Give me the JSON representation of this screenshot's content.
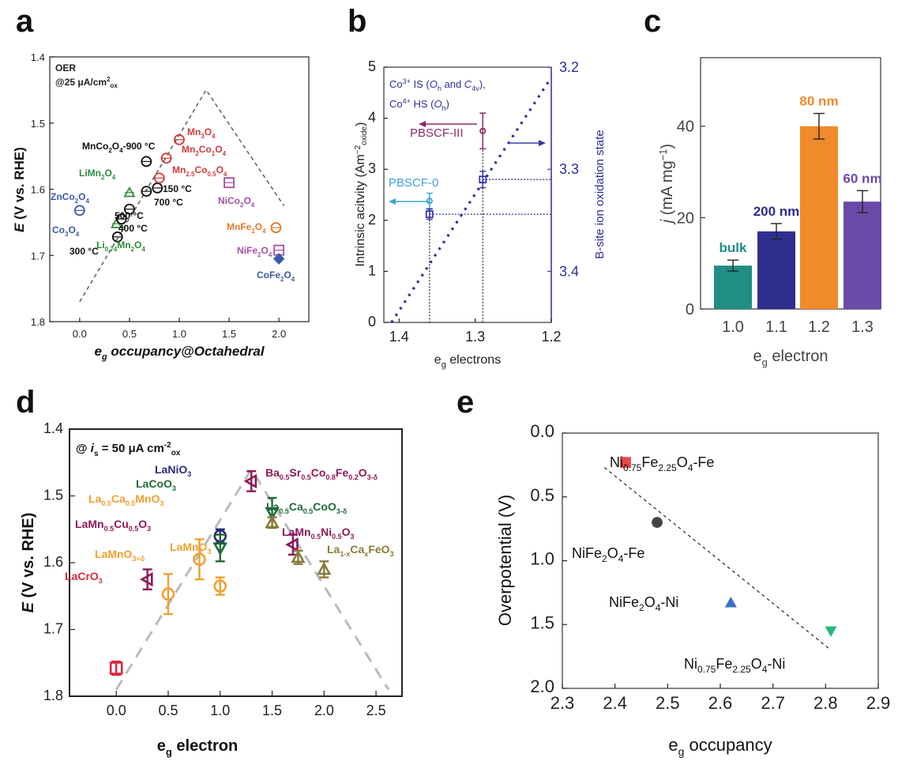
{
  "panel_labels": [
    "a",
    "b",
    "c",
    "d",
    "e"
  ],
  "chart_data": [
    {
      "panel": "a",
      "type": "scatter",
      "xlabel": "eg occupancy@Octahedral",
      "ylabel": "E (V vs. RHE)",
      "annotations": [
        "OER",
        "@25 μA/cm²ox"
      ],
      "xlim": [
        -0.3,
        2.3
      ],
      "ylim": [
        1.8,
        1.4
      ],
      "xticks": [
        "0.0",
        "0.5",
        "1.0",
        "1.5",
        "2.0"
      ],
      "yticks": [
        "1.4",
        "1.5",
        "1.6",
        "1.7",
        "1.8"
      ],
      "guide": [
        [
          0.0,
          1.77
        ],
        [
          1.27,
          1.45
        ],
        [
          2.05,
          1.625
        ]
      ],
      "points": [
        {
          "label": "ZnCo₂O₄",
          "x": 0.0,
          "y": 1.632,
          "color": "#3a5ba8",
          "marker": "circle"
        },
        {
          "label": "Co₃O₄",
          "x": 0.0,
          "y": 1.632,
          "color": "#3a5ba8",
          "marker": "none",
          "show": false
        },
        {
          "label": "LiMn₂O₄",
          "x": 0.5,
          "y": 1.605,
          "color": "#2e8b3a",
          "marker": "triangle"
        },
        {
          "label": "Li₀.₇₄Mn₂O₄",
          "x": 0.37,
          "y": 1.652,
          "color": "#2e8b3a",
          "marker": "triangle"
        },
        {
          "label": "MnCo₂O₄-900 °C",
          "x": 0.67,
          "y": 1.558,
          "color": "#111111",
          "marker": "circle"
        },
        {
          "label": "150 °C",
          "x": 0.78,
          "y": 1.598,
          "color": "#111111",
          "marker": "circle"
        },
        {
          "label": "700 °C",
          "x": 0.67,
          "y": 1.603,
          "color": "#111111",
          "marker": "circle"
        },
        {
          "label": "500 °C",
          "x": 0.5,
          "y": 1.63,
          "color": "#111111",
          "marker": "circle"
        },
        {
          "label": "400 °C",
          "x": 0.42,
          "y": 1.645,
          "color": "#111111",
          "marker": "circle"
        },
        {
          "label": "300 °C",
          "x": 0.38,
          "y": 1.672,
          "color": "#111111",
          "marker": "circle"
        },
        {
          "label": "Mn₃O₄",
          "x": 1.0,
          "y": 1.525,
          "color": "#d03b3b",
          "marker": "circle"
        },
        {
          "label": "Mn₂Co₁O₄",
          "x": 0.87,
          "y": 1.553,
          "color": "#d03b3b",
          "marker": "circle"
        },
        {
          "label": "Mn₂.₅Co₀.₅O₄",
          "x": 0.8,
          "y": 1.583,
          "color": "#d03b3b",
          "marker": "circle"
        },
        {
          "label": "NiCo₂O₄",
          "x": 1.5,
          "y": 1.59,
          "color": "#a64ea8",
          "marker": "square"
        },
        {
          "label": "MnFe₂O₄",
          "x": 1.97,
          "y": 1.658,
          "color": "#e07b2a",
          "marker": "circle"
        },
        {
          "label": "NiFe₂O₄",
          "x": 2.0,
          "y": 1.692,
          "color": "#a64ea8",
          "marker": "square"
        },
        {
          "label": "CoFe₂O₄",
          "x": 2.0,
          "y": 1.705,
          "color": "#3a5ba8",
          "marker": "diamond"
        }
      ]
    },
    {
      "panel": "b",
      "type": "scatter",
      "xlabel": "eg electrons",
      "ylabel": "Intrinsic acitvity (Am⁻²oxide)",
      "y2label": "B-site ion oxidation state",
      "annotations": [
        "Co³⁺ IS (Oh and C4v),",
        "Co⁴⁺ HS (Oh)"
      ],
      "xlim": [
        1.42,
        1.2
      ],
      "ylim": [
        0,
        5
      ],
      "y2lim": [
        3.2,
        3.45
      ],
      "xticks": [
        "1.4",
        "1.3",
        "1.2"
      ],
      "yticks": [
        "0",
        "1",
        "2",
        "3",
        "4",
        "5"
      ],
      "y2ticks": [
        "3.2",
        "3.3",
        "3.4"
      ],
      "points": [
        {
          "label": "PBSCF-III",
          "x": 1.29,
          "y": 3.75,
          "err": 0.35,
          "color": "#8b2a6a"
        },
        {
          "label": "PBSCF-0",
          "x": 1.36,
          "y": 2.38,
          "err": 0.15,
          "color": "#3aa6d8"
        }
      ],
      "oxidation_points": [
        {
          "x": 1.29,
          "y2": 3.31,
          "err": 0.008
        },
        {
          "x": 1.36,
          "y2": 3.344,
          "err": 0.005
        }
      ],
      "guide": [
        [
          1.41,
          0.0
        ],
        [
          1.2,
          4.8
        ]
      ]
    },
    {
      "panel": "c",
      "type": "bar",
      "xlabel": "eg electron",
      "ylabel": "j (mA mg⁻¹)",
      "categories": [
        "1.0",
        "1.1",
        "1.2",
        "1.3"
      ],
      "values": [
        9.5,
        17,
        40,
        23.5
      ],
      "errors": [
        1.2,
        1.7,
        2.8,
        2.4
      ],
      "bar_labels": [
        "bulk",
        "200 nm",
        "80 nm",
        "60 nm"
      ],
      "colors": [
        "#1f8f86",
        "#2e2e8f",
        "#f08a2a",
        "#6a4aa8"
      ],
      "ylim": [
        0,
        55
      ],
      "yticks": [
        "0",
        "20",
        "40"
      ]
    },
    {
      "panel": "d",
      "type": "scatter",
      "xlabel": "eg electron",
      "ylabel": "E (V vs. RHE)",
      "annotations": [
        "@ is = 50 μA cm⁻²ox"
      ],
      "xlim": [
        -0.45,
        2.75
      ],
      "ylim": [
        1.8,
        1.4
      ],
      "xticks": [
        "0.0",
        "0.5",
        "1.0",
        "1.5",
        "2.0",
        "2.5"
      ],
      "yticks": [
        "1.4",
        "1.5",
        "1.6",
        "1.7",
        "1.8"
      ],
      "guide": [
        [
          0.0,
          1.79
        ],
        [
          1.3,
          1.46
        ],
        [
          2.62,
          1.79
        ]
      ],
      "points": [
        {
          "label": "LaCrO₃",
          "x": 0.0,
          "y": 1.758,
          "err": 0.01,
          "color": "#d42a3a",
          "marker": "square"
        },
        {
          "label": "LaMnO₃₊δ",
          "x": 0.5,
          "y": 1.647,
          "err": 0.03,
          "color": "#f0a030",
          "marker": "circle"
        },
        {
          "label": "La₀.₅Ca₀.₅MnO₃",
          "x": 0.8,
          "y": 1.595,
          "err": 0.03,
          "color": "#f0a030",
          "marker": "circle"
        },
        {
          "label": "LaMnO₃",
          "x": 1.0,
          "y": 1.635,
          "err": 0.013,
          "color": "#f0a030",
          "marker": "circle"
        },
        {
          "label": "LaMn₀.₅Cu₀.₅O₃",
          "x": 0.3,
          "y": 1.625,
          "err": 0.015,
          "color": "#8b1a5a",
          "marker": "triangle-left"
        },
        {
          "label": "LaNiO₃",
          "x": 1.0,
          "y": 1.56,
          "err": 0.01,
          "color": "#2a2a7a",
          "marker": "circle"
        },
        {
          "label": "LaCoO₃",
          "x": 1.0,
          "y": 1.578,
          "err": 0.02,
          "color": "#1f6a3a",
          "marker": "triangle-down"
        },
        {
          "label": "Ba₀.₅Sr₀.₅Co₀.₈Fe₀.₂O₃₋δ",
          "x": 1.3,
          "y": 1.478,
          "err": 0.015,
          "color": "#8b1a5a",
          "marker": "triangle-left"
        },
        {
          "label": "La₀.₅Ca₀.₅CoO₃₋δ",
          "x": 1.5,
          "y": 1.525,
          "err": 0.022,
          "color": "#1f6a3a",
          "marker": "triangle-down"
        },
        {
          "label": "La₁₋ₓCaₓFeO₃",
          "x": 1.5,
          "y": 1.54,
          "err": 0.008,
          "color": "#8a7a3a",
          "marker": "triangle"
        },
        {
          "label": "LaMn₀.₅Ni₀.₅O₃",
          "x": 1.7,
          "y": 1.573,
          "err": 0.015,
          "color": "#8b1a5a",
          "marker": "triangle-left"
        },
        {
          "label": "",
          "x": 1.75,
          "y": 1.592,
          "err": 0.01,
          "color": "#8a7a3a",
          "marker": "triangle"
        },
        {
          "label": "",
          "x": 2.0,
          "y": 1.61,
          "err": 0.012,
          "color": "#8a7a3a",
          "marker": "triangle"
        }
      ]
    },
    {
      "panel": "e",
      "type": "scatter",
      "xlabel": "eg occupancy",
      "ylabel": "Overpotential (V)",
      "xlim": [
        2.3,
        2.9
      ],
      "ylim": [
        0.0,
        2.0
      ],
      "xticks": [
        "2.3",
        "2.4",
        "2.5",
        "2.6",
        "2.7",
        "2.8",
        "2.9"
      ],
      "yticks": [
        "0.0",
        "0.5",
        "1.0",
        "1.5",
        "2.0"
      ],
      "guide": [
        [
          2.38,
          0.27
        ],
        [
          2.81,
          1.7
        ]
      ],
      "points": [
        {
          "label": "Ni₀.₇₅Fe₂.₂₅O₄-Fe",
          "x": 2.42,
          "y": 0.23,
          "color": "#e84a4a",
          "marker": "square"
        },
        {
          "label": "NiFe₂O₄-Fe",
          "x": 2.48,
          "y": 0.7,
          "color": "#444444",
          "marker": "circle"
        },
        {
          "label": "NiFe₂O₄-Ni",
          "x": 2.62,
          "y": 1.33,
          "color": "#3a6ec8",
          "marker": "triangle"
        },
        {
          "label": "Ni₀.₇₅Fe₂.₂₅O₄-Ni",
          "x": 2.81,
          "y": 1.55,
          "color": "#2ab87a",
          "marker": "triangle-down"
        }
      ]
    }
  ]
}
